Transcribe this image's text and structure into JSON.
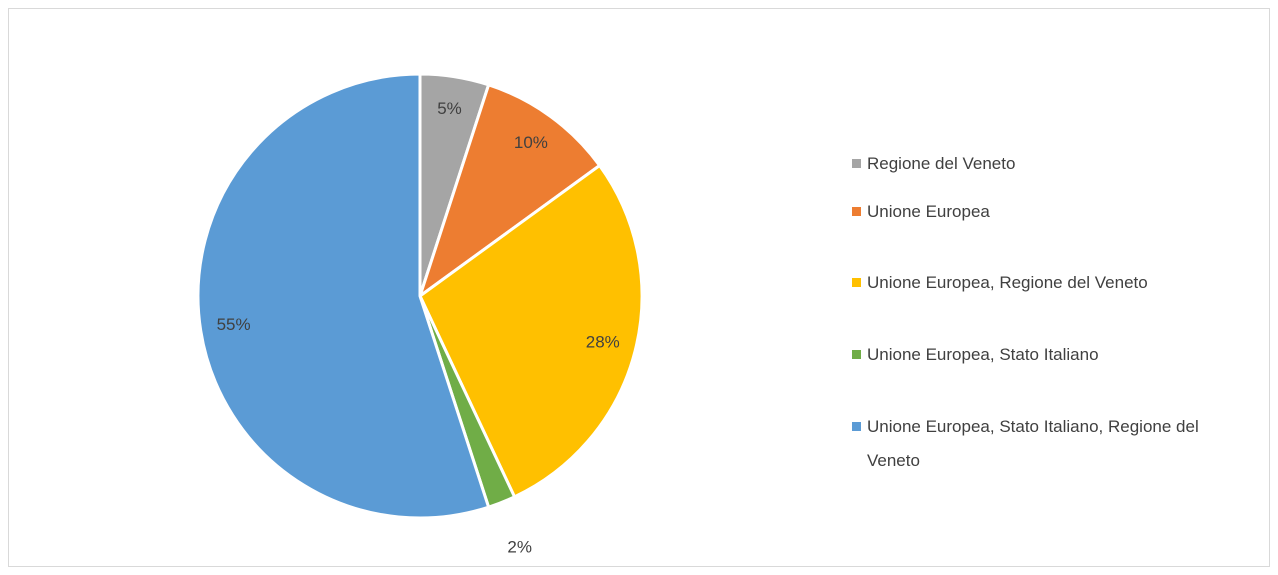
{
  "chart_data": {
    "type": "pie",
    "categories": [
      "Regione del Veneto",
      "Unione Europea",
      "Unione Europea, Regione del Veneto",
      "Unione Europea, Stato Italiano",
      "Unione Europea, Stato Italiano, Regione del Veneto"
    ],
    "values": [
      5,
      10,
      28,
      2,
      55
    ],
    "value_labels": [
      "5%",
      "10%",
      "28%",
      "2%",
      "55%"
    ],
    "colors": [
      "#a5a5a5",
      "#ed7d31",
      "#ffc000",
      "#70ad47",
      "#5b9bd5"
    ],
    "legend": "right"
  }
}
